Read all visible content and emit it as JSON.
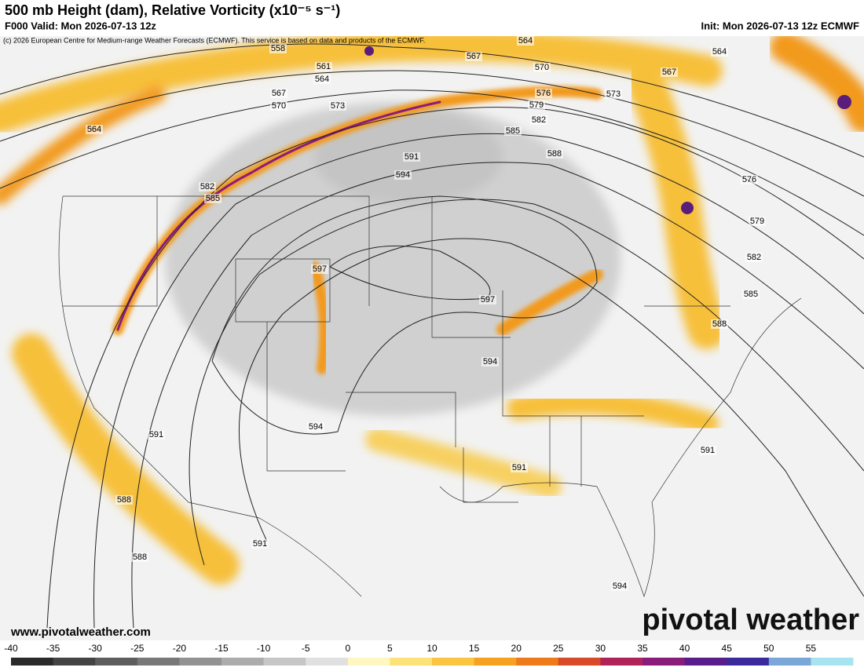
{
  "header": {
    "title": "500 mb Height (dam), Relative Vorticity (x10⁻⁵ s⁻¹)",
    "valid": "F000 Valid: Mon 2026-07-13 12z",
    "init": "Init: Mon 2026-07-13 12z ECMWF",
    "credit": "(c) 2026 European Centre for Medium-range Weather Forecasts (ECMWF). This service is based on data and products of the ECMWF."
  },
  "contour_labels": [
    558,
    564,
    561,
    567,
    564,
    570,
    567,
    564,
    567,
    570,
    573,
    576,
    573,
    579,
    582,
    564,
    585,
    588,
    591,
    594,
    582,
    585,
    576,
    579,
    582,
    597,
    597,
    585,
    588,
    594,
    594,
    591,
    591,
    591,
    588,
    591,
    588,
    594
  ],
  "footer": {
    "website": "www.pivotalweather.com",
    "logo": "pivotal weather"
  },
  "colorbar": {
    "ticks": [
      -40,
      -35,
      -30,
      -25,
      -20,
      -15,
      -10,
      -5,
      0,
      5,
      10,
      15,
      20,
      25,
      30,
      35,
      40,
      45,
      50,
      55
    ]
  }
}
